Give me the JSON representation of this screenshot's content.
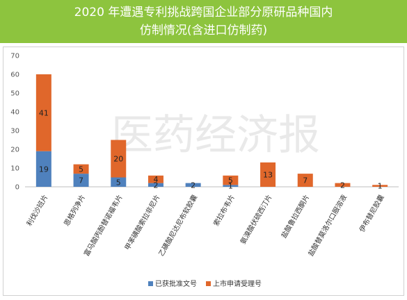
{
  "header": {
    "line1": "2020 年遭遇专利挑战跨国企业部分原研品种国内",
    "line2": "仿制情况(含进口仿制药)"
  },
  "watermark": "医药经济报",
  "chart_data": {
    "type": "bar",
    "stacked": true,
    "title": "2020 年遭遇专利挑战跨国企业部分原研品种国内仿制情况(含进口仿制药)",
    "categories": [
      "利伐沙班片",
      "恩格列净片",
      "富马酸丙酚替诺福韦片",
      "甲苯磺酸索拉非尼片",
      "乙磺酸尼达尼布软胶囊",
      "索拉布韦片",
      "氨溴酸伏硫西汀片",
      "盐酸鲁拉西酮片",
      "盐酸替莫洛尔口服溶液",
      "伊布替尼胶囊"
    ],
    "series": [
      {
        "name": "已获批准文号",
        "color": "#4f81bd",
        "values": [
          19,
          7,
          5,
          2,
          2,
          1,
          0,
          0,
          0,
          0
        ]
      },
      {
        "name": "上市申请受理号",
        "color": "#e0672b",
        "values": [
          41,
          5,
          20,
          4,
          0,
          5,
          13,
          7,
          2,
          1
        ]
      }
    ],
    "labels": [
      [
        "19",
        "7",
        "5",
        "2",
        "2",
        "1",
        "",
        "",
        "",
        ""
      ],
      [
        "41",
        "5",
        "20",
        "4",
        "",
        "5",
        "13",
        "7",
        "2",
        "1"
      ]
    ],
    "yticks": [
      0,
      10,
      20,
      30,
      40,
      50,
      60,
      70
    ],
    "ylim": [
      0,
      70
    ],
    "grid": false,
    "legend": "bottom"
  }
}
